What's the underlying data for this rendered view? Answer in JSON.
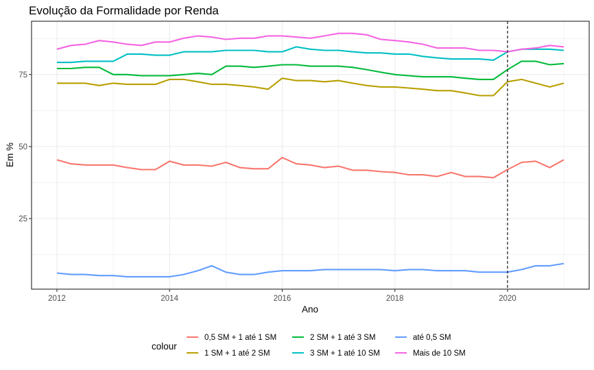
{
  "chart_data": {
    "type": "line",
    "title": "Evolução da Formalidade por Renda",
    "xlabel": "Ano",
    "ylabel": "Em %",
    "xlim": [
      2011.55,
      2021.45
    ],
    "ylim": [
      0.5,
      93.5
    ],
    "x_ticks": [
      2012,
      2014,
      2016,
      2018,
      2020
    ],
    "x_tick_labels": [
      "2012",
      "2014",
      "2016",
      "2018",
      "2020"
    ],
    "y_ticks": [
      25,
      50,
      75
    ],
    "y_tick_labels": [
      "25",
      "50",
      "75"
    ],
    "grid": true,
    "vline": {
      "x": 2020,
      "style": "dashed"
    },
    "legend": {
      "title": "colour",
      "position": "bottom"
    },
    "x": [
      2012.0,
      2012.25,
      2012.5,
      2012.75,
      2013.0,
      2013.25,
      2013.5,
      2013.75,
      2014.0,
      2014.25,
      2014.5,
      2014.75,
      2015.0,
      2015.25,
      2015.5,
      2015.75,
      2016.0,
      2016.25,
      2016.5,
      2016.75,
      2017.0,
      2017.25,
      2017.5,
      2017.75,
      2018.0,
      2018.25,
      2018.5,
      2018.75,
      2019.0,
      2019.25,
      2019.5,
      2019.75,
      2020.0,
      2020.25,
      2020.5,
      2020.75,
      2021.0
    ],
    "series": [
      {
        "name": "0,5 SM + 1 até 1 SM",
        "color": "#F8766D",
        "values": [
          45.4,
          44.0,
          43.6,
          43.6,
          43.6,
          42.7,
          42.0,
          42.0,
          44.9,
          43.6,
          43.6,
          43.2,
          44.5,
          42.7,
          42.3,
          42.3,
          46.2,
          44.0,
          43.6,
          42.7,
          43.2,
          41.8,
          41.8,
          41.3,
          41.0,
          40.2,
          40.2,
          39.6,
          41.0,
          39.6,
          39.6,
          39.2,
          42.0,
          44.5,
          44.9,
          42.7,
          45.4
        ]
      },
      {
        "name": "1 SM + 1 até 2 SM",
        "color": "#B79F00",
        "values": [
          72.0,
          72.0,
          72.0,
          71.2,
          72.0,
          71.6,
          71.6,
          71.6,
          73.3,
          73.3,
          72.5,
          71.6,
          71.6,
          71.2,
          70.7,
          69.9,
          73.7,
          72.9,
          72.9,
          72.5,
          72.9,
          72.0,
          71.2,
          70.7,
          70.7,
          70.3,
          69.9,
          69.4,
          69.4,
          68.6,
          67.7,
          67.7,
          72.5,
          73.3,
          72.0,
          70.7,
          72.0
        ]
      },
      {
        "name": "2 SM + 1 até 3 SM",
        "color": "#00BA38",
        "values": [
          77.1,
          77.1,
          77.5,
          77.5,
          75.0,
          75.0,
          74.6,
          74.6,
          74.6,
          75.0,
          75.4,
          75.0,
          77.9,
          77.9,
          77.5,
          77.9,
          78.4,
          78.4,
          77.9,
          77.9,
          77.9,
          77.5,
          76.7,
          75.8,
          75.0,
          74.6,
          74.2,
          74.2,
          74.2,
          73.7,
          73.3,
          73.3,
          76.7,
          79.6,
          79.6,
          78.4,
          78.8
        ]
      },
      {
        "name": "3 SM + 1 até 10 SM",
        "color": "#00BFC4",
        "values": [
          79.2,
          79.2,
          79.6,
          79.6,
          79.6,
          82.1,
          82.1,
          81.7,
          81.7,
          82.9,
          82.9,
          82.9,
          83.4,
          83.4,
          83.4,
          82.9,
          82.9,
          84.6,
          83.8,
          83.4,
          83.4,
          82.9,
          82.5,
          82.5,
          82.1,
          82.1,
          81.3,
          80.8,
          80.4,
          80.4,
          80.4,
          80.0,
          82.9,
          83.8,
          83.8,
          83.8,
          83.4
        ]
      },
      {
        "name": "até 0,5 SM",
        "color": "#619CFF",
        "values": [
          6.1,
          5.6,
          5.6,
          5.2,
          5.2,
          4.8,
          4.8,
          4.8,
          4.8,
          5.6,
          6.9,
          8.6,
          6.4,
          5.6,
          5.6,
          6.4,
          6.9,
          6.9,
          6.9,
          7.3,
          7.3,
          7.3,
          7.3,
          7.3,
          6.9,
          7.3,
          7.3,
          6.9,
          6.9,
          6.9,
          6.4,
          6.4,
          6.4,
          7.3,
          8.6,
          8.6,
          9.4
        ]
      },
      {
        "name": "Mais de 10 SM",
        "color": "#F564E3",
        "values": [
          83.8,
          85.1,
          85.5,
          86.8,
          86.3,
          85.5,
          85.1,
          86.3,
          86.3,
          87.6,
          88.4,
          88.0,
          87.2,
          87.6,
          87.6,
          88.4,
          88.4,
          88.0,
          87.6,
          88.4,
          89.3,
          89.3,
          88.8,
          87.2,
          86.8,
          86.3,
          85.5,
          84.2,
          84.2,
          84.2,
          83.4,
          83.4,
          82.9,
          83.8,
          84.2,
          85.1,
          84.6
        ]
      }
    ]
  }
}
